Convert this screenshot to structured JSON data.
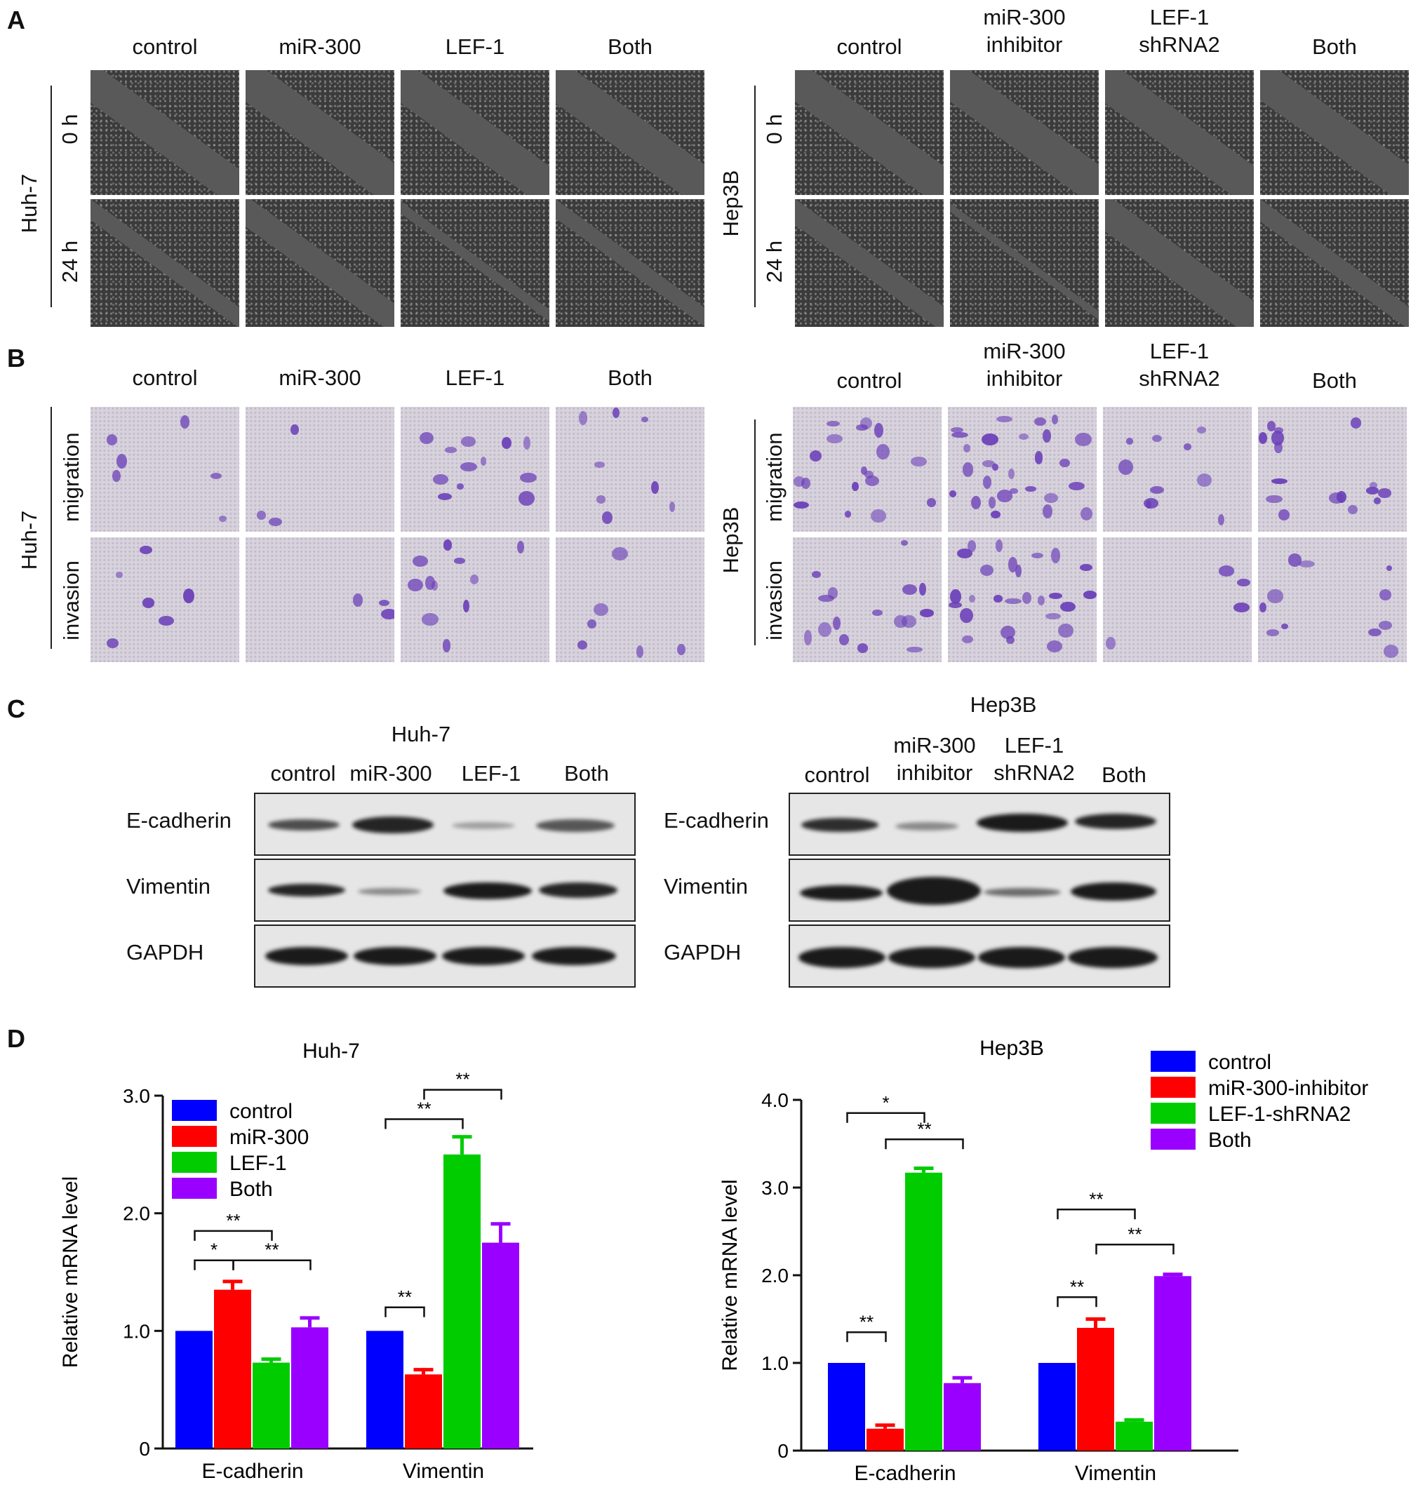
{
  "panels": {
    "A": "A",
    "B": "B",
    "C": "C",
    "D": "D"
  },
  "huh7": {
    "cell_line": "Huh-7",
    "groups": [
      "control",
      "miR-300",
      "LEF-1",
      "Both"
    ]
  },
  "hep3b": {
    "cell_line": "Hep3B",
    "groups": [
      "control",
      "miR-300\ninhibitor",
      "LEF-1\nshRNA2",
      "Both"
    ]
  },
  "panelA": {
    "rows": [
      "0 h",
      "24 h"
    ]
  },
  "panelB": {
    "rows": [
      "migration",
      "invasion"
    ]
  },
  "panelC": {
    "huh7_title": "Huh-7",
    "hep3b_title": "Hep3B",
    "proteins": [
      "E-cadherin",
      "Vimentin",
      "GAPDH"
    ]
  },
  "colors": {
    "control": "#0000ff",
    "second": "#ff0000",
    "third": "#00cc00",
    "both": "#9900ff"
  },
  "chart_data": [
    {
      "type": "bar",
      "title": "Huh-7",
      "xlabel": "",
      "ylabel": "Relative mRNA level",
      "ylim": [
        0,
        3.0
      ],
      "yticks": [
        "0",
        "1.0",
        "2.0",
        "3.0"
      ],
      "categories": [
        "E-cadherin",
        "Vimentin"
      ],
      "legend_position": "top-left",
      "series": [
        {
          "name": "control",
          "values": [
            1.0,
            1.0
          ],
          "errors": [
            0.0,
            0.0
          ]
        },
        {
          "name": "miR-300",
          "values": [
            1.35,
            0.63
          ],
          "errors": [
            0.07,
            0.04
          ]
        },
        {
          "name": "LEF-1",
          "values": [
            0.73,
            2.5
          ],
          "errors": [
            0.03,
            0.15
          ]
        },
        {
          "name": "Both",
          "values": [
            1.03,
            1.75
          ],
          "errors": [
            0.08,
            0.16
          ]
        }
      ],
      "significance": [
        {
          "label": "*",
          "category": 0,
          "from": 0,
          "to": 1,
          "y": 1.6
        },
        {
          "label": "**",
          "category": 0,
          "from": 0,
          "to": 2,
          "y": 1.85
        },
        {
          "label": "**",
          "category": 0,
          "from": 1,
          "to": 3,
          "y": 1.6
        },
        {
          "label": "**",
          "category": 1,
          "from": 0,
          "to": 1,
          "y": 1.2
        },
        {
          "label": "**",
          "category": 1,
          "from": 0,
          "to": 2,
          "y": 2.8
        },
        {
          "label": "**",
          "category": 1,
          "from": 1,
          "to": 3,
          "y": 3.05
        }
      ]
    },
    {
      "type": "bar",
      "title": "Hep3B",
      "xlabel": "",
      "ylabel": "Relative mRNA level",
      "ylim": [
        0,
        4.0
      ],
      "yticks": [
        "0",
        "1.0",
        "2.0",
        "3.0",
        "4.0"
      ],
      "categories": [
        "E-cadherin",
        "Vimentin"
      ],
      "legend_position": "top-right",
      "series": [
        {
          "name": "control",
          "values": [
            1.0,
            1.0
          ],
          "errors": [
            0.0,
            0.0
          ]
        },
        {
          "name": "miR-300-inhibitor",
          "values": [
            0.25,
            1.4
          ],
          "errors": [
            0.04,
            0.1
          ]
        },
        {
          "name": "LEF-1-shRNA2",
          "values": [
            3.17,
            0.33
          ],
          "errors": [
            0.05,
            0.02
          ]
        },
        {
          "name": "Both",
          "values": [
            0.77,
            1.99
          ],
          "errors": [
            0.06,
            0.02
          ]
        }
      ],
      "significance": [
        {
          "label": "**",
          "category": 0,
          "from": 0,
          "to": 1,
          "y": 1.35
        },
        {
          "label": "*",
          "category": 0,
          "from": 0,
          "to": 2,
          "y": 3.85
        },
        {
          "label": "**",
          "category": 0,
          "from": 1,
          "to": 3,
          "y": 3.55
        },
        {
          "label": "**",
          "category": 1,
          "from": 0,
          "to": 1,
          "y": 1.75
        },
        {
          "label": "**",
          "category": 1,
          "from": 0,
          "to": 2,
          "y": 2.75
        },
        {
          "label": "**",
          "category": 1,
          "from": 1,
          "to": 3,
          "y": 2.35
        }
      ]
    }
  ]
}
